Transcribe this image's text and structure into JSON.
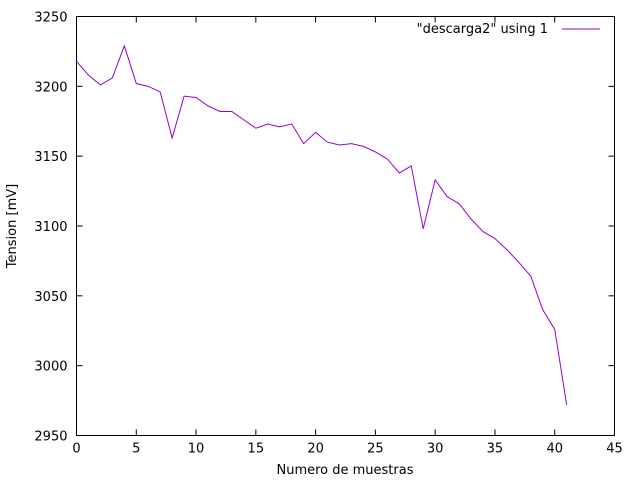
{
  "chart_data": {
    "type": "line",
    "xlabel": "Numero de muestras",
    "ylabel": "Tension [mV]",
    "xlim": [
      0,
      45
    ],
    "ylim": [
      2950,
      3250
    ],
    "xticks": [
      0,
      5,
      10,
      15,
      20,
      25,
      30,
      35,
      40,
      45
    ],
    "yticks": [
      2950,
      3000,
      3050,
      3100,
      3150,
      3200,
      3250
    ],
    "grid": false,
    "legend_position": "top-right",
    "series": [
      {
        "name": "\"descarga2\" using 1",
        "color": "#9400d3",
        "x": [
          0,
          1,
          2,
          3,
          4,
          5,
          6,
          7,
          8,
          9,
          10,
          11,
          12,
          13,
          14,
          15,
          16,
          17,
          18,
          19,
          20,
          21,
          22,
          23,
          24,
          25,
          26,
          27,
          28,
          29,
          30,
          31,
          32,
          33,
          34,
          35,
          36,
          37,
          38,
          39,
          40,
          41
        ],
        "values": [
          3218,
          3208,
          3201,
          3206,
          3229,
          3202,
          3200,
          3196,
          3163,
          3193,
          3192,
          3186,
          3182,
          3182,
          3176,
          3170,
          3173,
          3171,
          3173,
          3159,
          3167,
          3160,
          3158,
          3159,
          3157,
          3153,
          3148,
          3138,
          3143,
          3098,
          3133,
          3121,
          3116,
          3105,
          3096,
          3091,
          3083,
          3074,
          3064,
          3040,
          3026,
          2972
        ]
      }
    ]
  }
}
